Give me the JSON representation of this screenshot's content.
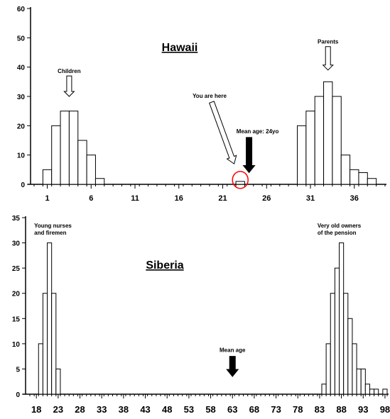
{
  "chart_data": [
    {
      "type": "bar",
      "title": "Hawaii",
      "ylim": [
        0,
        60
      ],
      "yticks": [
        0,
        10,
        20,
        30,
        40,
        50,
        60
      ],
      "xlim": [
        0,
        40
      ],
      "xtick_labels": [
        "1",
        "6",
        "11",
        "16",
        "21",
        "26",
        "31",
        "36"
      ],
      "xtick_values": [
        1,
        6,
        11,
        16,
        21,
        26,
        31,
        36
      ],
      "bars": [
        {
          "x": 1,
          "value": 5
        },
        {
          "x": 2,
          "value": 20
        },
        {
          "x": 3,
          "value": 25
        },
        {
          "x": 4,
          "value": 25
        },
        {
          "x": 5,
          "value": 15
        },
        {
          "x": 6,
          "value": 10
        },
        {
          "x": 7,
          "value": 2
        },
        {
          "x": 23,
          "value": 1
        },
        {
          "x": 30,
          "value": 20
        },
        {
          "x": 31,
          "value": 25
        },
        {
          "x": 32,
          "value": 30
        },
        {
          "x": 33,
          "value": 35
        },
        {
          "x": 34,
          "value": 30
        },
        {
          "x": 35,
          "value": 10
        },
        {
          "x": 36,
          "value": 5
        },
        {
          "x": 37,
          "value": 4
        },
        {
          "x": 38,
          "value": 2
        }
      ],
      "annotations": [
        {
          "text": "Children",
          "x": 3.5,
          "arrow_from": 37,
          "arrow_to": 30,
          "style": "hollow"
        },
        {
          "text": "Parents",
          "x": 33,
          "arrow_from": 47,
          "arrow_to": 39,
          "style": "hollow"
        },
        {
          "text": "You are here",
          "x": 20,
          "arrow_x_end": 22.8,
          "arrow_from": 29,
          "arrow_to": 7,
          "style": "hollow-long"
        },
        {
          "text": "Mean age: 24yo",
          "x": 24,
          "arrow_from": 16,
          "arrow_to": 4,
          "style": "solid"
        }
      ],
      "highlight": {
        "x": 23,
        "y": 1.5
      }
    },
    {
      "type": "bar",
      "title": "Siberia",
      "ylim": [
        0,
        35
      ],
      "yticks": [
        0,
        5,
        10,
        15,
        20,
        25,
        30,
        35
      ],
      "xlim": [
        17,
        99
      ],
      "xtick_labels": [
        "18",
        "23",
        "28",
        "33",
        "38",
        "43",
        "48",
        "53",
        "58",
        "63",
        "68",
        "73",
        "78",
        "83",
        "88",
        "93",
        "98"
      ],
      "xtick_values": [
        18,
        23,
        28,
        33,
        38,
        43,
        48,
        53,
        58,
        63,
        68,
        73,
        78,
        83,
        88,
        93,
        98
      ],
      "bars": [
        {
          "x": 19,
          "value": 10
        },
        {
          "x": 20,
          "value": 20
        },
        {
          "x": 21,
          "value": 30
        },
        {
          "x": 22,
          "value": 20
        },
        {
          "x": 23,
          "value": 5
        },
        {
          "x": 84,
          "value": 2
        },
        {
          "x": 85,
          "value": 10
        },
        {
          "x": 86,
          "value": 20
        },
        {
          "x": 87,
          "value": 25
        },
        {
          "x": 88,
          "value": 30
        },
        {
          "x": 89,
          "value": 20
        },
        {
          "x": 90,
          "value": 15
        },
        {
          "x": 91,
          "value": 10
        },
        {
          "x": 92,
          "value": 5
        },
        {
          "x": 93,
          "value": 5
        },
        {
          "x": 94,
          "value": 2
        },
        {
          "x": 95,
          "value": 1
        },
        {
          "x": 96,
          "value": 1
        },
        {
          "x": 98,
          "value": 1
        }
      ],
      "annotations": [
        {
          "lines": [
            "Young nurses",
            "and firemen"
          ],
          "x": 18,
          "style": "text"
        },
        {
          "lines": [
            "Very old owners",
            "of the pension"
          ],
          "x": 83,
          "style": "text"
        },
        {
          "text": "Mean age",
          "x": 63,
          "arrow_from": 7.5,
          "arrow_to": 3.5,
          "style": "solid"
        }
      ]
    }
  ]
}
